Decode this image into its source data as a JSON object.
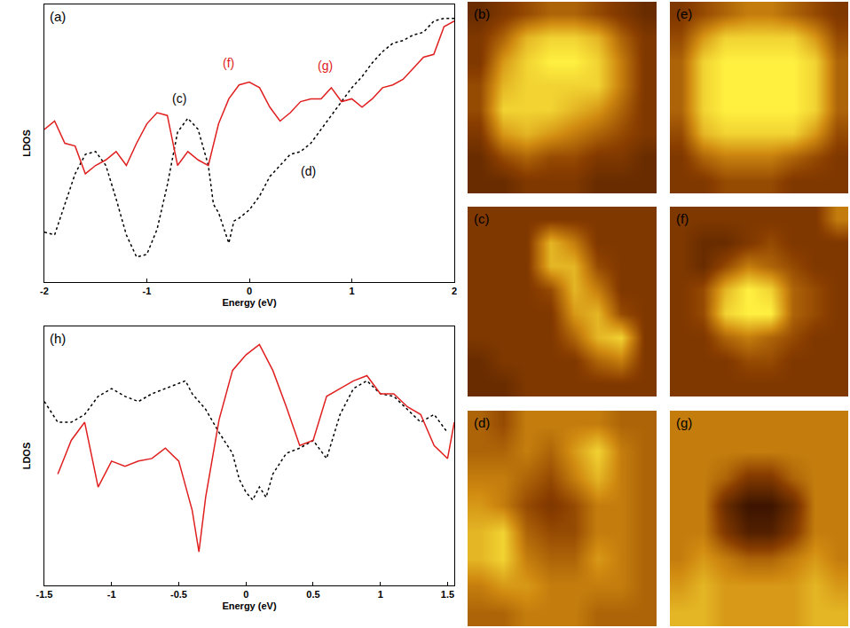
{
  "chart_data": [
    {
      "type": "line",
      "label": "(a)",
      "x_label": "Energy (eV)",
      "y_label": "LDOS",
      "xlim": [
        -2,
        2
      ],
      "xticks": [
        -2,
        -1,
        0,
        1,
        2
      ],
      "ylim": [
        0,
        100
      ],
      "tick_labels": "x",
      "series": [
        {
          "color": "#000000",
          "line_style": "dotted",
          "x": [
            -2.0,
            -1.9,
            -1.8,
            -1.7,
            -1.6,
            -1.5,
            -1.4,
            -1.3,
            -1.2,
            -1.1,
            -1.0,
            -0.9,
            -0.8,
            -0.7,
            -0.6,
            -0.5,
            -0.4,
            -0.35,
            -0.3,
            -0.2,
            -0.15,
            -0.1,
            0.0,
            0.1,
            0.2,
            0.3,
            0.4,
            0.5,
            0.6,
            0.7,
            0.8,
            0.9,
            1.0,
            1.1,
            1.2,
            1.3,
            1.4,
            1.5,
            1.6,
            1.7,
            1.8,
            1.9,
            2.0
          ],
          "values": [
            18,
            17,
            28,
            39,
            46,
            47,
            42,
            30,
            17,
            9,
            10,
            19,
            35,
            54,
            59,
            55,
            42,
            28,
            25,
            14,
            22,
            23,
            26,
            31,
            38,
            42,
            46,
            47,
            50,
            55,
            60,
            65,
            70,
            74,
            79,
            83,
            86,
            87,
            89,
            90,
            94,
            95,
            95
          ]
        },
        {
          "color": "#e02020",
          "line_style": "solid",
          "x": [
            -2.0,
            -1.9,
            -1.8,
            -1.7,
            -1.6,
            -1.5,
            -1.4,
            -1.3,
            -1.2,
            -1.1,
            -1.0,
            -0.9,
            -0.8,
            -0.7,
            -0.6,
            -0.5,
            -0.4,
            -0.3,
            -0.2,
            -0.1,
            0.0,
            0.1,
            0.2,
            0.3,
            0.4,
            0.5,
            0.6,
            0.7,
            0.8,
            0.9,
            1.0,
            1.1,
            1.2,
            1.3,
            1.4,
            1.5,
            1.6,
            1.7,
            1.8,
            1.9,
            2.0
          ],
          "values": [
            55,
            58,
            50,
            49,
            39,
            42,
            44,
            47,
            42,
            50,
            57,
            61,
            60,
            42,
            47,
            44,
            42,
            57,
            66,
            71,
            72,
            70,
            63,
            58,
            61,
            65,
            66,
            66,
            70,
            65,
            66,
            63,
            66,
            70,
            71,
            73,
            77,
            81,
            82,
            92,
            94
          ]
        }
      ],
      "annotations": [
        {
          "text": "(c)",
          "x": -0.68,
          "y": 66,
          "color": "#000000"
        },
        {
          "text": "(d)",
          "x": 0.58,
          "y": 40,
          "color": "#000000"
        },
        {
          "text": "(f)",
          "x": -0.2,
          "y": 79,
          "color": "#e02020"
        },
        {
          "text": "(g)",
          "x": 0.74,
          "y": 78,
          "color": "#e02020"
        }
      ]
    },
    {
      "type": "line",
      "label": "(h)",
      "x_label": "Energy (eV)",
      "y_label": "LDOS",
      "xlim": [
        -1.5,
        1.55
      ],
      "xticks": [
        -1.5,
        -1,
        -0.5,
        0,
        0.5,
        1,
        1.5
      ],
      "ylim": [
        0,
        100
      ],
      "tick_labels": "x",
      "series": [
        {
          "color": "#000000",
          "line_style": "dotted",
          "x": [
            -1.5,
            -1.4,
            -1.3,
            -1.2,
            -1.1,
            -1.0,
            -0.9,
            -0.8,
            -0.7,
            -0.6,
            -0.5,
            -0.45,
            -0.4,
            -0.3,
            -0.2,
            -0.1,
            -0.05,
            0.0,
            0.05,
            0.1,
            0.15,
            0.2,
            0.3,
            0.4,
            0.5,
            0.6,
            0.7,
            0.8,
            0.9,
            1.0,
            1.1,
            1.2,
            1.3,
            1.4,
            1.5
          ],
          "values": [
            71,
            63,
            63,
            66,
            73,
            76,
            73,
            71,
            74,
            76,
            78,
            79,
            74,
            68,
            59,
            51,
            41,
            36,
            33,
            38,
            34,
            43,
            51,
            53,
            56,
            49,
            66,
            76,
            79,
            74,
            73,
            68,
            63,
            66,
            59
          ]
        },
        {
          "color": "#e02020",
          "line_style": "solid",
          "x": [
            -1.4,
            -1.3,
            -1.2,
            -1.1,
            -1.0,
            -0.9,
            -0.8,
            -0.7,
            -0.6,
            -0.5,
            -0.4,
            -0.35,
            -0.3,
            -0.2,
            -0.1,
            0.0,
            0.1,
            0.2,
            0.3,
            0.4,
            0.5,
            0.6,
            0.7,
            0.8,
            0.9,
            1.0,
            1.1,
            1.2,
            1.3,
            1.4,
            1.5,
            1.55
          ],
          "values": [
            43,
            56,
            63,
            38,
            48,
            46,
            48,
            49,
            53,
            48,
            29,
            13,
            34,
            64,
            83,
            89,
            93,
            83,
            69,
            54,
            56,
            73,
            76,
            79,
            81,
            74,
            74,
            69,
            66,
            54,
            49,
            63
          ]
        }
      ],
      "annotations": []
    },
    {
      "type": "heatmap",
      "label": "(b)",
      "zlim": [
        0,
        1
      ],
      "z": [
        [
          0.2,
          0.3,
          0.4,
          0.5,
          0.5,
          0.4,
          0.3,
          0.2
        ],
        [
          0.3,
          0.5,
          0.8,
          0.9,
          0.9,
          0.8,
          0.5,
          0.3
        ],
        [
          0.3,
          0.7,
          0.9,
          1,
          1,
          0.9,
          0.6,
          0.3
        ],
        [
          0.4,
          0.8,
          0.9,
          0.9,
          0.9,
          0.9,
          0.6,
          0.3
        ],
        [
          0.4,
          0.9,
          0.9,
          0.9,
          0.8,
          0.7,
          0.5,
          0.3
        ],
        [
          0.3,
          0.7,
          0.8,
          0.7,
          0.6,
          0.5,
          0.4,
          0.3
        ],
        [
          0.2,
          0.4,
          0.5,
          0.4,
          0.4,
          0.3,
          0.3,
          0.2
        ],
        [
          0.2,
          0.2,
          0.3,
          0.3,
          0.3,
          0.2,
          0.2,
          0.2
        ]
      ]
    },
    {
      "type": "heatmap",
      "label": "(e)",
      "zlim": [
        0,
        1
      ],
      "z": [
        [
          0.3,
          0.4,
          0.5,
          0.6,
          0.6,
          0.5,
          0.4,
          0.3
        ],
        [
          0.4,
          0.7,
          0.9,
          0.9,
          0.9,
          0.9,
          0.7,
          0.4
        ],
        [
          0.5,
          0.9,
          1,
          1,
          1,
          1,
          0.9,
          0.5
        ],
        [
          0.5,
          0.9,
          1,
          1,
          1,
          1,
          0.9,
          0.5
        ],
        [
          0.5,
          0.9,
          1,
          1,
          1,
          1,
          0.9,
          0.5
        ],
        [
          0.4,
          0.8,
          0.9,
          0.9,
          0.9,
          0.9,
          0.7,
          0.4
        ],
        [
          0.3,
          0.5,
          0.6,
          0.6,
          0.6,
          0.5,
          0.4,
          0.3
        ],
        [
          0.3,
          0.3,
          0.4,
          0.4,
          0.4,
          0.3,
          0.3,
          0.3
        ]
      ]
    },
    {
      "type": "heatmap",
      "label": "(c)",
      "zlim": [
        0,
        1
      ],
      "z": [
        [
          0.3,
          0.3,
          0.3,
          0.3,
          0.3,
          0.3,
          0.3,
          0.3
        ],
        [
          0.3,
          0.3,
          0.3,
          0.8,
          0.6,
          0.3,
          0.3,
          0.3
        ],
        [
          0.3,
          0.3,
          0.3,
          0.8,
          0.8,
          0.4,
          0.3,
          0.3
        ],
        [
          0.3,
          0.3,
          0.3,
          0.4,
          0.8,
          0.6,
          0.3,
          0.3
        ],
        [
          0.3,
          0.3,
          0.3,
          0.3,
          0.7,
          0.8,
          0.4,
          0.3
        ],
        [
          0.3,
          0.3,
          0.3,
          0.3,
          0.5,
          0.8,
          0.9,
          0.3
        ],
        [
          0.2,
          0.3,
          0.3,
          0.3,
          0.3,
          0.5,
          0.6,
          0.3
        ],
        [
          0.2,
          0.2,
          0.3,
          0.3,
          0.3,
          0.3,
          0.3,
          0.3
        ]
      ]
    },
    {
      "type": "heatmap",
      "label": "(f)",
      "zlim": [
        0,
        1
      ],
      "z": [
        [
          0.3,
          0.3,
          0.3,
          0.3,
          0.3,
          0.3,
          0.3,
          0.6
        ],
        [
          0.3,
          0.2,
          0.2,
          0.3,
          0.4,
          0.3,
          0.3,
          0.3
        ],
        [
          0.3,
          0.2,
          0.4,
          0.6,
          0.5,
          0.4,
          0.3,
          0.3
        ],
        [
          0.3,
          0.4,
          0.8,
          1,
          0.9,
          0.5,
          0.4,
          0.3
        ],
        [
          0.3,
          0.4,
          0.9,
          1,
          1,
          0.5,
          0.4,
          0.3
        ],
        [
          0.3,
          0.3,
          0.5,
          0.6,
          0.5,
          0.4,
          0.3,
          0.3
        ],
        [
          0.3,
          0.3,
          0.3,
          0.4,
          0.4,
          0.3,
          0.3,
          0.3
        ],
        [
          0.3,
          0.3,
          0.3,
          0.3,
          0.3,
          0.3,
          0.3,
          0.3
        ]
      ]
    },
    {
      "type": "heatmap",
      "label": "(d)",
      "zlim": [
        0,
        1
      ],
      "z": [
        [
          0.5,
          0.4,
          0.6,
          0.6,
          0.6,
          0.6,
          0.5,
          0.5
        ],
        [
          0.5,
          0.5,
          0.6,
          0.5,
          0.7,
          0.9,
          0.6,
          0.5
        ],
        [
          0.6,
          0.6,
          0.5,
          0.4,
          0.6,
          0.8,
          0.6,
          0.5
        ],
        [
          0.7,
          0.6,
          0.4,
          0.3,
          0.4,
          0.6,
          0.6,
          0.5
        ],
        [
          0.8,
          0.9,
          0.5,
          0.4,
          0.4,
          0.6,
          0.6,
          0.5
        ],
        [
          0.8,
          0.9,
          0.6,
          0.5,
          0.5,
          0.7,
          0.6,
          0.5
        ],
        [
          0.6,
          0.7,
          0.7,
          0.6,
          0.6,
          0.6,
          0.6,
          0.5
        ],
        [
          0.5,
          0.5,
          0.6,
          0.6,
          0.6,
          0.5,
          0.5,
          0.5
        ]
      ]
    },
    {
      "type": "heatmap",
      "label": "(g)",
      "zlim": [
        0,
        1
      ],
      "z": [
        [
          0.6,
          0.6,
          0.6,
          0.6,
          0.6,
          0.6,
          0.6,
          0.6
        ],
        [
          0.6,
          0.6,
          0.6,
          0.6,
          0.6,
          0.6,
          0.6,
          0.6
        ],
        [
          0.6,
          0.6,
          0.5,
          0.3,
          0.3,
          0.5,
          0.6,
          0.6
        ],
        [
          0.6,
          0.6,
          0.2,
          0,
          0,
          0.2,
          0.6,
          0.6
        ],
        [
          0.6,
          0.6,
          0.3,
          0.1,
          0.1,
          0.3,
          0.6,
          0.6
        ],
        [
          0.6,
          0.7,
          0.6,
          0.5,
          0.5,
          0.6,
          0.7,
          0.6
        ],
        [
          0.7,
          0.8,
          0.7,
          0.7,
          0.7,
          0.7,
          0.8,
          0.7
        ],
        [
          0.8,
          0.8,
          0.7,
          0.7,
          0.7,
          0.7,
          0.8,
          0.8
        ]
      ]
    }
  ]
}
